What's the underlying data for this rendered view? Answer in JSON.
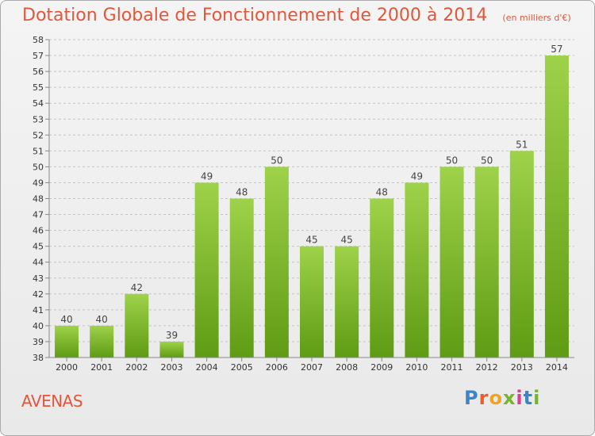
{
  "header": {
    "title": "Dotation Globale de Fonctionnement de 2000 à 2014",
    "unit": "(en milliers d'€)"
  },
  "footer": {
    "place": "AVENAS",
    "logo_letters": [
      "P",
      "r",
      "o",
      "x",
      "i",
      "t",
      "i"
    ],
    "logo_colors": [
      "#3b86c6",
      "#e95d2b",
      "#f2a51c",
      "#73b52c",
      "#d83f8c",
      "#3b86c6",
      "#73b52c"
    ]
  },
  "colors": {
    "bar_light": "#9ed24a",
    "bar_dark": "#5f9b14",
    "grid": "#c4c4c4",
    "axis": "#888888",
    "accent": "#e0573b"
  },
  "chart_data": {
    "type": "bar",
    "title": "Dotation Globale de Fonctionnement de 2000 à 2014",
    "subtitle": "(en milliers d'€)",
    "xlabel": "",
    "ylabel": "",
    "grid": true,
    "ylim": [
      38,
      58
    ],
    "yticks": [
      38,
      39,
      40,
      41,
      42,
      43,
      44,
      45,
      46,
      47,
      48,
      49,
      50,
      51,
      52,
      53,
      54,
      55,
      56,
      57,
      58
    ],
    "categories": [
      "2000",
      "2001",
      "2002",
      "2003",
      "2004",
      "2005",
      "2006",
      "2007",
      "2008",
      "2009",
      "2010",
      "2011",
      "2012",
      "2013",
      "2014"
    ],
    "values": [
      40,
      40,
      42,
      39,
      49,
      48,
      50,
      45,
      45,
      48,
      49,
      50,
      50,
      51,
      57
    ]
  }
}
